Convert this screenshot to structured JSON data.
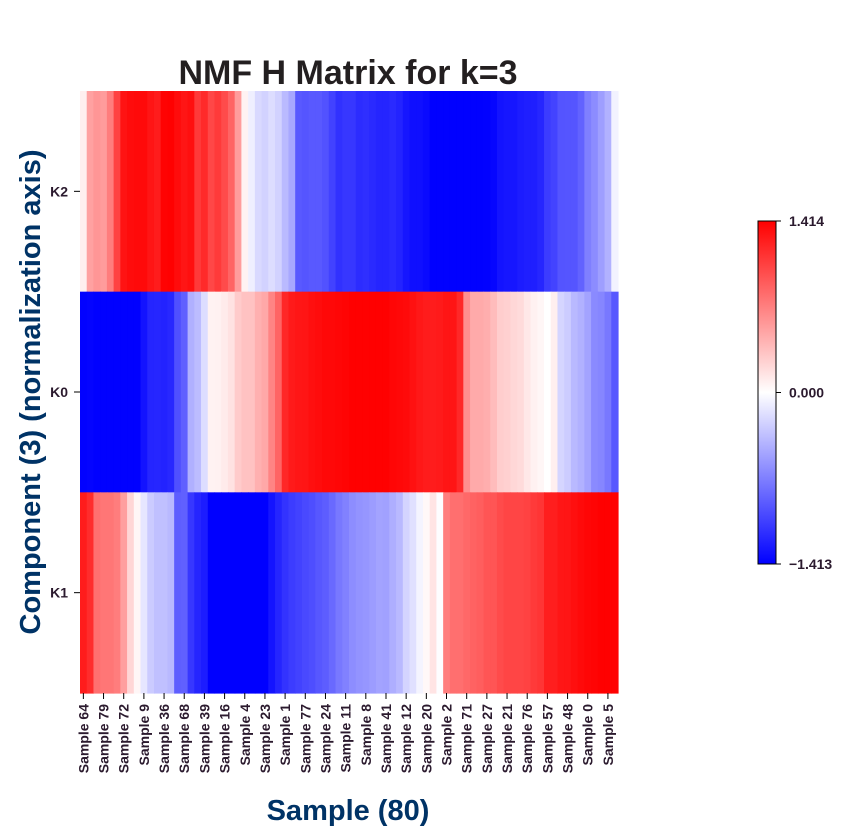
{
  "chart_data": {
    "type": "heatmap",
    "title": "NMF H Matrix for k=3",
    "xlabel": "Sample (80)",
    "ylabel": "Component (3) (normalization axis)",
    "rows": [
      "K2",
      "K0",
      "K1"
    ],
    "x_tick_labels": [
      "Sample 64",
      "Sample 79",
      "Sample 72",
      "Sample 9",
      "Sample 36",
      "Sample 68",
      "Sample 39",
      "Sample 16",
      "Sample 4",
      "Sample 23",
      "Sample 1",
      "Sample 77",
      "Sample 24",
      "Sample 11",
      "Sample 8",
      "Sample 41",
      "Sample 12",
      "Sample 20",
      "Sample 2",
      "Sample 71",
      "Sample 27",
      "Sample 21",
      "Sample 76",
      "Sample 57",
      "Sample 48",
      "Sample 0",
      "Sample 5"
    ],
    "values": [
      [
        0.09,
        0.52,
        0.58,
        0.55,
        0.72,
        1.05,
        1.31,
        1.35,
        1.36,
        1.36,
        1.3,
        1.26,
        1.4,
        1.41,
        1.35,
        1.3,
        1.33,
        1.1,
        1.18,
        1.02,
        1.09,
        1.0,
        0.86,
        0.55,
        0.07,
        -0.09,
        -0.21,
        -0.25,
        -0.19,
        -0.25,
        -0.38,
        -0.48,
        -0.92,
        -0.94,
        -0.92,
        -0.92,
        -0.96,
        -1.05,
        -1.14,
        -1.11,
        -1.11,
        -1.17,
        -1.15,
        -1.18,
        -1.21,
        -1.21,
        -1.18,
        -1.22,
        -1.29,
        -1.33,
        -1.33,
        -1.36,
        -1.41,
        -1.41,
        -1.41,
        -1.41,
        -1.41,
        -1.41,
        -1.41,
        -1.41,
        -1.4,
        -1.38,
        -1.31,
        -1.29,
        -1.29,
        -1.26,
        -1.24,
        -1.24,
        -1.2,
        -1.08,
        -1.04,
        -0.95,
        -0.94,
        -0.94,
        -0.87,
        -0.71,
        -0.64,
        -0.54,
        -0.43,
        -0.07
      ],
      [
        -1.4,
        -1.39,
        -1.41,
        -1.41,
        -1.41,
        -1.41,
        -1.41,
        -1.41,
        -1.41,
        -1.31,
        -1.21,
        -1.2,
        -1.22,
        -1.19,
        -0.97,
        -0.88,
        -0.44,
        -0.37,
        -0.19,
        0.07,
        0.08,
        0.11,
        0.16,
        0.29,
        0.34,
        0.34,
        0.44,
        0.48,
        0.68,
        0.86,
        1.2,
        1.27,
        1.29,
        1.3,
        1.33,
        1.35,
        1.37,
        1.37,
        1.38,
        1.39,
        1.41,
        1.41,
        1.41,
        1.41,
        1.41,
        1.41,
        1.38,
        1.37,
        1.36,
        1.32,
        1.28,
        1.26,
        1.26,
        1.27,
        1.3,
        1.3,
        1.19,
        0.62,
        0.47,
        0.47,
        0.45,
        0.37,
        0.28,
        0.26,
        0.22,
        0.2,
        0.13,
        0.08,
        0.05,
        0.0,
        0.09,
        -0.23,
        -0.28,
        -0.39,
        -0.43,
        -0.51,
        -0.65,
        -0.67,
        -0.75,
        -0.93
      ],
      [
        1.26,
        1.17,
        0.8,
        0.76,
        0.76,
        0.72,
        0.53,
        0.23,
        0.05,
        -0.14,
        -0.29,
        -0.35,
        -0.35,
        -0.39,
        -0.89,
        -0.88,
        -1.11,
        -1.21,
        -1.26,
        -1.42,
        -1.42,
        -1.42,
        -1.42,
        -1.42,
        -1.42,
        -1.42,
        -1.42,
        -1.42,
        -1.3,
        -1.21,
        -1.13,
        -1.08,
        -1.05,
        -1.01,
        -0.98,
        -0.93,
        -0.9,
        -0.83,
        -0.75,
        -0.7,
        -0.63,
        -0.6,
        -0.58,
        -0.55,
        -0.51,
        -0.52,
        -0.45,
        -0.39,
        -0.24,
        -0.17,
        -0.06,
        0.04,
        0.15,
        -0.01,
        0.72,
        0.8,
        0.8,
        0.84,
        0.87,
        0.89,
        0.94,
        0.94,
        1.0,
        1.03,
        1.03,
        1.03,
        1.05,
        1.09,
        1.12,
        1.25,
        1.25,
        1.29,
        1.3,
        1.33,
        1.36,
        1.38,
        1.39,
        1.41,
        1.41,
        1.41
      ]
    ],
    "colorbar": {
      "min": -1.413,
      "max": 1.414,
      "ticks": [
        "1.414",
        "0.000",
        "−1.413"
      ]
    },
    "colormap": {
      "low": "#0000ff",
      "mid": "#ffffff",
      "high": "#ff0000"
    }
  }
}
